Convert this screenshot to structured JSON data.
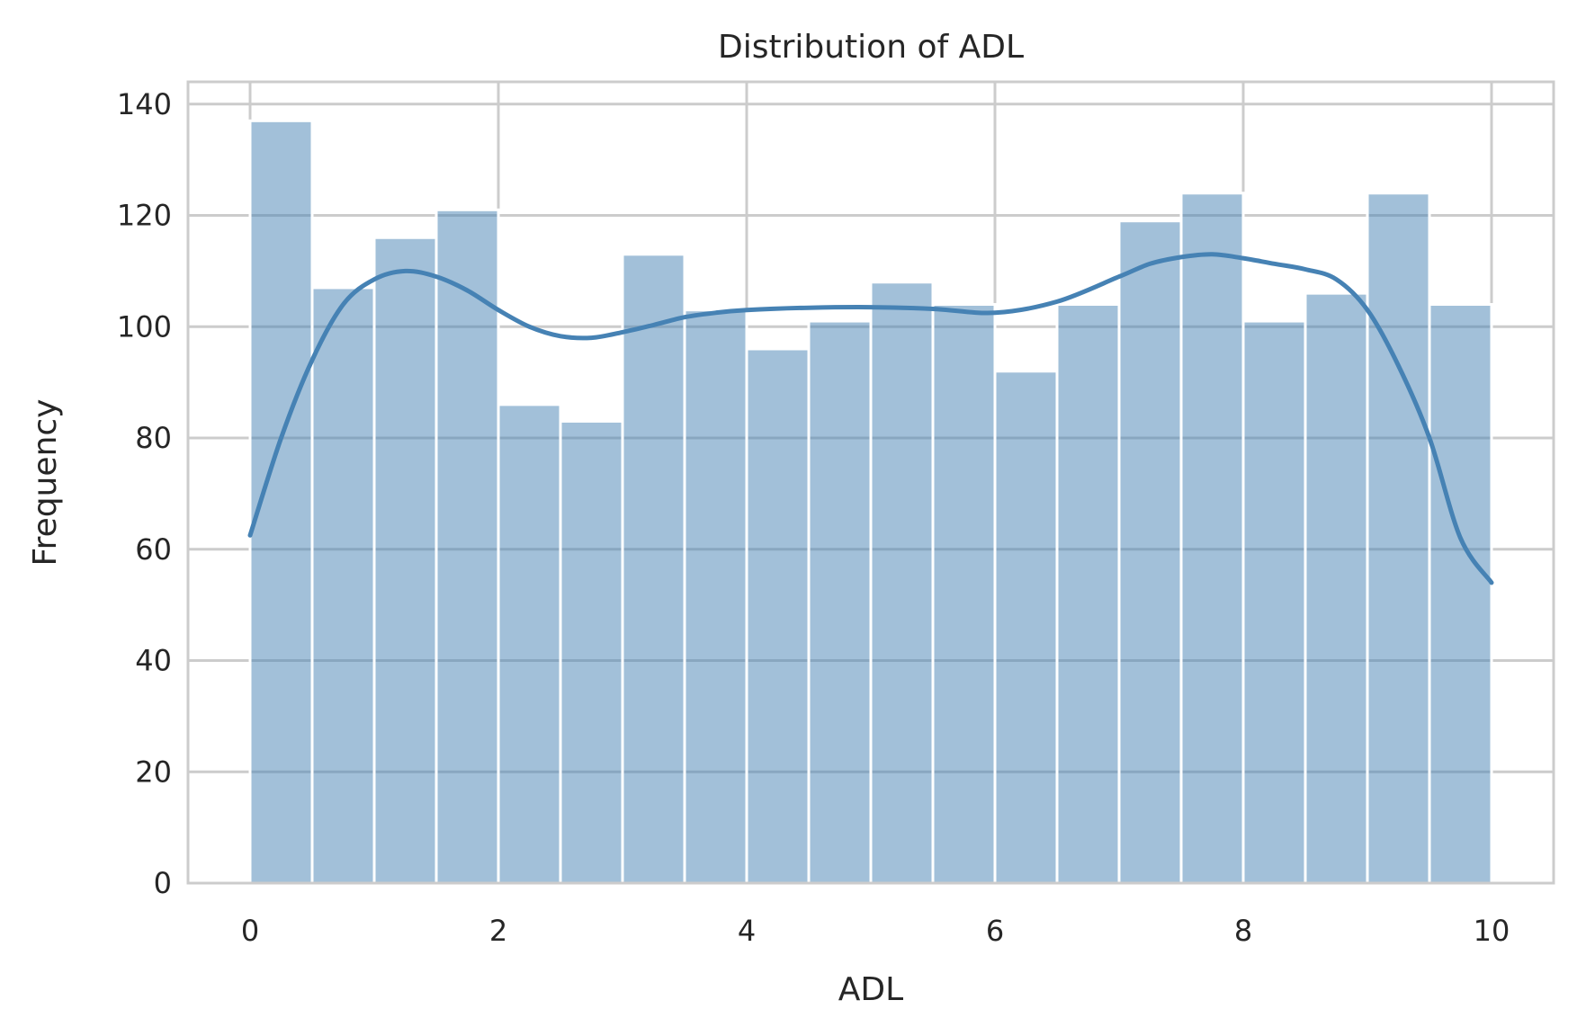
{
  "chart_data": {
    "type": "bar",
    "title": "Distribution of ADL",
    "xlabel": "ADL",
    "ylabel": "Frequency",
    "xlim": [
      -0.5,
      10.5
    ],
    "ylim": [
      0,
      144
    ],
    "xticks": [
      0,
      2,
      4,
      6,
      8,
      10
    ],
    "yticks": [
      0,
      20,
      40,
      60,
      80,
      100,
      120,
      140
    ],
    "grid": true,
    "bar_color": "#4682b4",
    "bar_opacity": 0.5,
    "bins": [
      {
        "x0": 0.0,
        "x1": 0.5,
        "count": 137
      },
      {
        "x0": 0.5,
        "x1": 1.0,
        "count": 107
      },
      {
        "x0": 1.0,
        "x1": 1.5,
        "count": 116
      },
      {
        "x0": 1.5,
        "x1": 2.0,
        "count": 121
      },
      {
        "x0": 2.0,
        "x1": 2.5,
        "count": 86
      },
      {
        "x0": 2.5,
        "x1": 3.0,
        "count": 83
      },
      {
        "x0": 3.0,
        "x1": 3.5,
        "count": 113
      },
      {
        "x0": 3.5,
        "x1": 4.0,
        "count": 103
      },
      {
        "x0": 4.0,
        "x1": 4.5,
        "count": 96
      },
      {
        "x0": 4.5,
        "x1": 5.0,
        "count": 101
      },
      {
        "x0": 5.0,
        "x1": 5.5,
        "count": 108
      },
      {
        "x0": 5.5,
        "x1": 6.0,
        "count": 104
      },
      {
        "x0": 6.0,
        "x1": 6.5,
        "count": 92
      },
      {
        "x0": 6.5,
        "x1": 7.0,
        "count": 104
      },
      {
        "x0": 7.0,
        "x1": 7.5,
        "count": 119
      },
      {
        "x0": 7.5,
        "x1": 8.0,
        "count": 124
      },
      {
        "x0": 8.0,
        "x1": 8.5,
        "count": 101
      },
      {
        "x0": 8.5,
        "x1": 9.0,
        "count": 106
      },
      {
        "x0": 9.0,
        "x1": 9.5,
        "count": 124
      },
      {
        "x0": 9.5,
        "x1": 10.0,
        "count": 104
      }
    ],
    "kde": {
      "color": "#4682b4",
      "x": [
        0,
        0.25,
        0.5,
        0.75,
        1.0,
        1.25,
        1.5,
        1.75,
        2.0,
        2.25,
        2.5,
        2.75,
        3.0,
        3.25,
        3.5,
        3.75,
        4.0,
        4.5,
        5.0,
        5.5,
        6.0,
        6.5,
        7.0,
        7.25,
        7.5,
        7.75,
        8.0,
        8.25,
        8.5,
        8.75,
        9.0,
        9.25,
        9.5,
        9.75,
        10.0
      ],
      "y": [
        62.5,
        80,
        94,
        104,
        108.5,
        110,
        109,
        106.5,
        103,
        100,
        98.3,
        98,
        99,
        100.3,
        101.7,
        102.5,
        103,
        103.4,
        103.5,
        103.2,
        102.5,
        104.5,
        109,
        111.3,
        112.5,
        113,
        112.3,
        111.3,
        110.3,
        108.5,
        103,
        93,
        80,
        62,
        54
      ]
    }
  }
}
